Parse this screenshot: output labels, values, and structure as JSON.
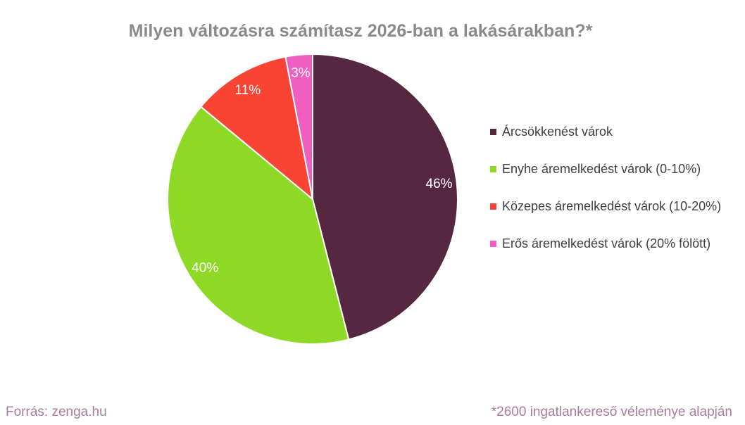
{
  "title": "Milyen változásra számítasz 2026-ban a lakásárakban?*",
  "footer": {
    "source": "Forrás: zenga.hu",
    "footnote": "*2600 ingatlankereső véleménye alapján"
  },
  "style": {
    "background": "#ffffff",
    "title_color": "#8a8a8a",
    "legend_text_color": "#3f3f3f",
    "footer_text_color": "#a87c9e",
    "slice_label_color": "#ffffff",
    "slice_border_color": "#ffffff"
  },
  "chart_data": {
    "type": "pie",
    "title": "Milyen változásra számítasz 2026-ban a lakásárakban?*",
    "categories": [
      "Árcsökkenést várok",
      "Enyhe áremelkedést várok (0-10%)",
      "Közepes áremelkedést várok (10-20%)",
      "Erős áremelkedést várok (20% fölött)"
    ],
    "values": [
      46,
      40,
      11,
      3
    ],
    "value_labels": [
      "46%",
      "40%",
      "11%",
      "3%"
    ],
    "colors": [
      "#552741",
      "#8ed926",
      "#fa4433",
      "#ee5fbf"
    ],
    "start_angle_deg": 0,
    "direction": "clockwise",
    "legend_position": "right",
    "annotations": {
      "source": "Forrás: zenga.hu",
      "footnote": "*2600 ingatlankereső véleménye alapján"
    }
  }
}
